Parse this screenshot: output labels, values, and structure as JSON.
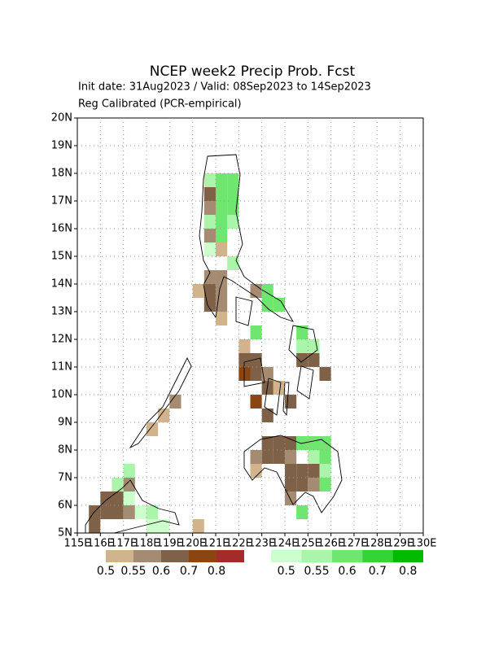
{
  "chart_data": {
    "type": "grid-map",
    "title": "NCEP week2 Precip Prob. Fcst",
    "subtitle": "Init date: 31Aug2023 / Valid: 08Sep2023 to 14Sep2023",
    "note": "Reg Calibrated (PCR-empirical)",
    "xlim": [
      115,
      130
    ],
    "ylim": [
      5,
      20
    ],
    "xticks": [
      {
        "value": 115,
        "label": "115E"
      },
      {
        "value": 116,
        "label": "116E"
      },
      {
        "value": 117,
        "label": "117E"
      },
      {
        "value": 118,
        "label": "118E"
      },
      {
        "value": 119,
        "label": "119E"
      },
      {
        "value": 120,
        "label": "120E"
      },
      {
        "value": 121,
        "label": "121E"
      },
      {
        "value": 122,
        "label": "122E"
      },
      {
        "value": 123,
        "label": "123E"
      },
      {
        "value": 124,
        "label": "124E"
      },
      {
        "value": 125,
        "label": "125E"
      },
      {
        "value": 126,
        "label": "126E"
      },
      {
        "value": 127,
        "label": "127E"
      },
      {
        "value": 128,
        "label": "128E"
      },
      {
        "value": 129,
        "label": "129E"
      },
      {
        "value": 130,
        "label": "130E"
      }
    ],
    "yticks": [
      {
        "value": 5,
        "label": "5N"
      },
      {
        "value": 6,
        "label": "6N"
      },
      {
        "value": 7,
        "label": "7N"
      },
      {
        "value": 8,
        "label": "8N"
      },
      {
        "value": 9,
        "label": "9N"
      },
      {
        "value": 10,
        "label": "10N"
      },
      {
        "value": 11,
        "label": "11N"
      },
      {
        "value": 12,
        "label": "12N"
      },
      {
        "value": 13,
        "label": "13N"
      },
      {
        "value": 14,
        "label": "14N"
      },
      {
        "value": 15,
        "label": "15N"
      },
      {
        "value": 16,
        "label": "16N"
      },
      {
        "value": 17,
        "label": "17N"
      },
      {
        "value": 18,
        "label": "18N"
      },
      {
        "value": 19,
        "label": "19N"
      },
      {
        "value": 20,
        "label": "20N"
      }
    ],
    "grid": true,
    "cell_size": 0.5,
    "dry_scale": {
      "levels": [
        0.5,
        0.55,
        0.6,
        0.7,
        0.8
      ],
      "colors": [
        "#d2b48c",
        "#a58b72",
        "#7f6148",
        "#8b4513",
        "#a52a2a"
      ]
    },
    "wet_scale": {
      "levels": [
        0.5,
        0.55,
        0.6,
        0.7,
        0.8
      ],
      "colors": [
        "#ccffcc",
        "#aaf5aa",
        "#6fe66f",
        "#33d433",
        "#00bb00"
      ]
    },
    "dry_cells": [
      [
        120.5,
        17,
        0.6
      ],
      [
        120.5,
        16.5,
        0.55
      ],
      [
        120.5,
        15.5,
        0.55
      ],
      [
        121,
        15,
        0.5
      ],
      [
        120.5,
        15,
        0.5
      ],
      [
        120.5,
        14,
        0.55
      ],
      [
        121,
        14,
        0.55
      ],
      [
        120.5,
        13.5,
        0.6
      ],
      [
        121,
        13.5,
        0.55
      ],
      [
        120,
        13.5,
        0.5
      ],
      [
        120.5,
        13,
        0.6
      ],
      [
        121,
        13,
        0.55
      ],
      [
        121,
        12.5,
        0.5
      ],
      [
        122.5,
        13.5,
        0.55
      ],
      [
        122,
        11.5,
        0.5
      ],
      [
        122,
        11,
        0.6
      ],
      [
        122.5,
        11,
        0.6
      ],
      [
        122,
        10.5,
        0.7
      ],
      [
        122.5,
        10.5,
        0.6
      ],
      [
        123,
        10.5,
        0.55
      ],
      [
        123,
        10,
        0.6
      ],
      [
        123.5,
        10,
        0.5
      ],
      [
        122.5,
        9.5,
        0.7
      ],
      [
        123,
        9,
        0.6
      ],
      [
        124,
        9.5,
        0.6
      ],
      [
        124.5,
        11,
        0.6
      ],
      [
        125,
        11,
        0.6
      ],
      [
        125.5,
        10.5,
        0.6
      ],
      [
        123,
        8,
        0.6
      ],
      [
        123.5,
        8,
        0.6
      ],
      [
        124,
        8,
        0.6
      ],
      [
        123,
        7.5,
        0.6
      ],
      [
        123.5,
        7.5,
        0.6
      ],
      [
        122.5,
        7.5,
        0.55
      ],
      [
        122.5,
        7,
        0.5
      ],
      [
        124,
        7.5,
        0.55
      ],
      [
        124,
        7,
        0.6
      ],
      [
        124.5,
        7,
        0.6
      ],
      [
        125,
        7,
        0.6
      ],
      [
        124,
        6.5,
        0.6
      ],
      [
        124.5,
        6.5,
        0.6
      ],
      [
        124,
        6,
        0.55
      ],
      [
        125,
        6.5,
        0.55
      ],
      [
        119,
        9.5,
        0.55
      ],
      [
        118,
        8.5,
        0.5
      ],
      [
        118.5,
        9,
        0.5
      ],
      [
        117,
        6.5,
        0.55
      ],
      [
        116,
        6,
        0.6
      ],
      [
        116.5,
        6,
        0.6
      ],
      [
        116,
        5.5,
        0.6
      ],
      [
        116.5,
        5.5,
        0.6
      ],
      [
        115.5,
        5.5,
        0.6
      ],
      [
        115.5,
        5,
        0.6
      ],
      [
        117,
        5.5,
        0.55
      ],
      [
        120,
        5,
        0.5
      ]
    ],
    "wet_cells": [
      [
        121,
        17.5,
        0.6
      ],
      [
        121.5,
        17.5,
        0.6
      ],
      [
        120.5,
        17.5,
        0.55
      ],
      [
        121,
        17,
        0.6
      ],
      [
        121.5,
        17,
        0.6
      ],
      [
        121,
        16.5,
        0.6
      ],
      [
        121.5,
        16.5,
        0.6
      ],
      [
        121,
        16,
        0.6
      ],
      [
        121.5,
        16,
        0.55
      ],
      [
        120.5,
        16,
        0.55
      ],
      [
        121,
        15.5,
        0.6
      ],
      [
        120.5,
        15,
        0.5
      ],
      [
        121.5,
        14.5,
        0.55
      ],
      [
        123,
        13,
        0.6
      ],
      [
        123.5,
        13,
        0.6
      ],
      [
        123,
        13.5,
        0.6
      ],
      [
        122.5,
        12,
        0.6
      ],
      [
        124.5,
        12,
        0.6
      ],
      [
        124.5,
        11.5,
        0.55
      ],
      [
        125,
        11.5,
        0.55
      ],
      [
        124.5,
        8,
        0.6
      ],
      [
        125,
        8,
        0.6
      ],
      [
        125.5,
        7.5,
        0.6
      ],
      [
        125,
        7.5,
        0.55
      ],
      [
        125.5,
        8,
        0.6
      ],
      [
        125.5,
        7,
        0.55
      ],
      [
        125.5,
        6.5,
        0.6
      ],
      [
        124.5,
        5.5,
        0.6
      ],
      [
        117,
        7,
        0.55
      ],
      [
        116.5,
        6.5,
        0.55
      ],
      [
        117,
        6,
        0.5
      ],
      [
        117.5,
        5.5,
        0.5
      ],
      [
        118,
        5.5,
        0.55
      ],
      [
        118,
        5,
        0.5
      ],
      [
        118.5,
        5,
        0.5
      ]
    ]
  }
}
